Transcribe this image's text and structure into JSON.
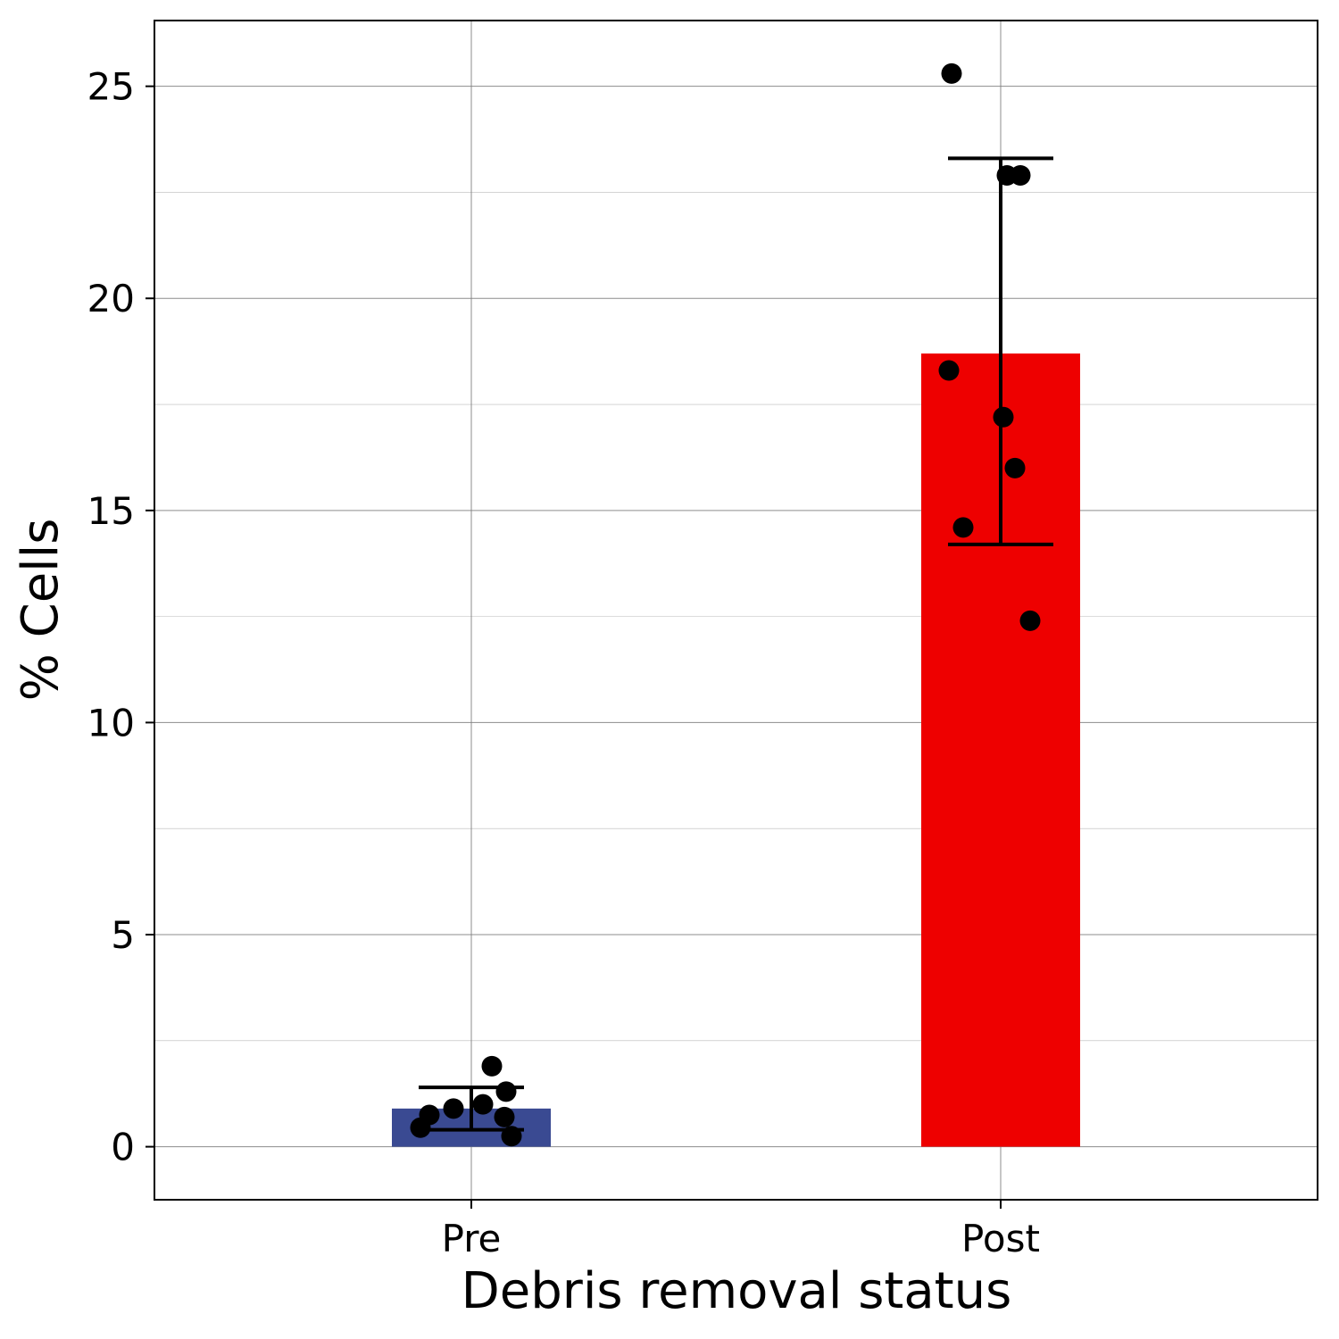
{
  "chart_data": {
    "type": "bar",
    "xlabel": "Debris removal status",
    "ylabel": "% Cells",
    "categories": [
      "Pre",
      "Post"
    ],
    "values": [
      0.9,
      18.7
    ],
    "error_bars": [
      {
        "low": 0.4,
        "high": 1.4
      },
      {
        "low": 14.2,
        "high": 23.3
      }
    ],
    "points": [
      [
        0.45,
        0.75,
        0.9,
        1.0,
        0.7,
        1.3,
        1.9,
        0.25
      ],
      [
        25.3,
        22.9,
        22.9,
        18.3,
        17.2,
        16.0,
        14.6,
        12.4
      ]
    ],
    "ylim": [
      -1.25,
      26.55
    ],
    "yticks": [
      0,
      5,
      10,
      15,
      20,
      25
    ],
    "grid": true,
    "colors": {
      "bars": [
        "#3a4a92",
        "#ee0000"
      ],
      "points": "#000000",
      "error_bars": "#000000",
      "grid": "#808080"
    }
  }
}
